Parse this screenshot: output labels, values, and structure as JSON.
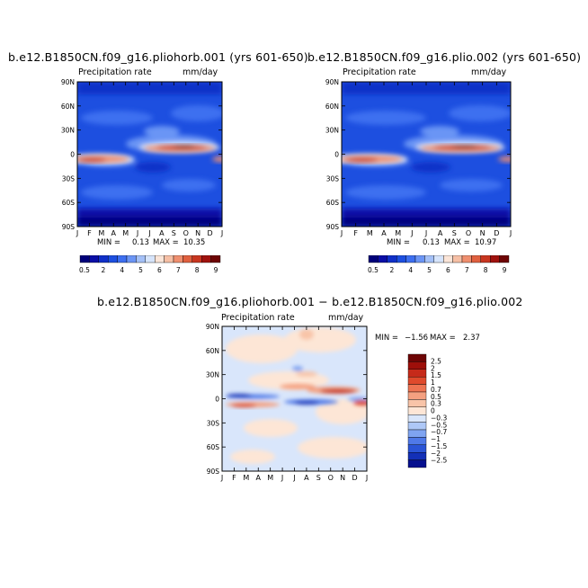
{
  "panels": [
    {
      "title": "b.e12.B1850CN.f09_g16.pliohorb.001 (yrs 601-650)",
      "left_label": "Precipitation rate",
      "right_label": "mm/day",
      "stats": {
        "min_label": "MIN =",
        "min": "0.13",
        "max_label": "MAX =",
        "max": "10.35"
      }
    },
    {
      "title": "b.e12.B1850CN.f09_g16.plio.002 (yrs 601-650)",
      "left_label": "Precipitation rate",
      "right_label": "mm/day",
      "stats": {
        "min_label": "MIN =",
        "min": "0.13",
        "max_label": "MAX =",
        "max": "10.97"
      }
    },
    {
      "title": "b.e12.B1850CN.f09_g16.pliohorb.001 − b.e12.B1850CN.f09_g16.plio.002",
      "left_label": "Precipitation rate",
      "right_label": "mm/day",
      "stats": {
        "min_label": "MIN =",
        "min": "−1.56",
        "max_label": "MAX =",
        "max": "2.37"
      }
    }
  ],
  "chart_data": [
    {
      "type": "heatmap",
      "title": "b.e12.B1850CN.f09_g16.pliohorb.001 (yrs 601-650)",
      "x_tick_labels": [
        "J",
        "F",
        "M",
        "A",
        "M",
        "J",
        "J",
        "A",
        "S",
        "O",
        "N",
        "D",
        "J"
      ],
      "y_tick_labels": [
        "90N",
        "60N",
        "30N",
        "0",
        "30S",
        "60S",
        "90S"
      ],
      "ylim": [
        "90S",
        "90N"
      ],
      "min": 0.13,
      "max": 10.35,
      "colorbar_labels": [
        "0.5",
        "2",
        "4",
        "5",
        "6",
        "7",
        "8",
        "9"
      ]
    },
    {
      "type": "heatmap",
      "title": "b.e12.B1850CN.f09_g16.plio.002 (yrs 601-650)",
      "x_tick_labels": [
        "J",
        "F",
        "M",
        "A",
        "M",
        "J",
        "J",
        "A",
        "S",
        "O",
        "N",
        "D",
        "J"
      ],
      "y_tick_labels": [
        "90N",
        "60N",
        "30N",
        "0",
        "30S",
        "60S",
        "90S"
      ],
      "ylim": [
        "90S",
        "90N"
      ],
      "min": 0.13,
      "max": 10.97,
      "colorbar_labels": [
        "0.5",
        "2",
        "4",
        "5",
        "6",
        "7",
        "8",
        "9"
      ]
    },
    {
      "type": "heatmap",
      "title": "b.e12.B1850CN.f09_g16.pliohorb.001 − b.e12.B1850CN.f09_g16.plio.002",
      "x_tick_labels": [
        "J",
        "F",
        "M",
        "A",
        "M",
        "J",
        "J",
        "A",
        "S",
        "O",
        "N",
        "D",
        "J"
      ],
      "y_tick_labels": [
        "90N",
        "60N",
        "30N",
        "0",
        "30S",
        "60S",
        "90S"
      ],
      "ylim": [
        "90S",
        "90N"
      ],
      "min": -1.56,
      "max": 2.37,
      "colorbar_labels": [
        "2.5",
        "2",
        "1.5",
        "1",
        "0.7",
        "0.5",
        "0.3",
        "0",
        "−0.3",
        "−0.5",
        "−0.7",
        "−1",
        "−1.5",
        "−2",
        "−2.5"
      ]
    }
  ],
  "colors": {
    "abs_scale": [
      "#00007a",
      "#0a0ea6",
      "#1030c8",
      "#1d4fe0",
      "#3d6ff0",
      "#6b95f5",
      "#a4c0f7",
      "#d6e4fb",
      "#fbe5d8",
      "#f6bfa5",
      "#ef8f6f",
      "#e0603f",
      "#c83620",
      "#a0120e",
      "#6e0505"
    ],
    "diff_scale": [
      "#6e0505",
      "#9e0f0a",
      "#c62a1a",
      "#df4a2c",
      "#ee7452",
      "#f4a080",
      "#f8c4a8",
      "#fde6d6",
      "#d9e6fb",
      "#aec8f7",
      "#7fa4f1",
      "#4f79e8",
      "#2a54d6",
      "#1330b7",
      "#06108e"
    ],
    "diff_background": "#d9e6fb"
  }
}
